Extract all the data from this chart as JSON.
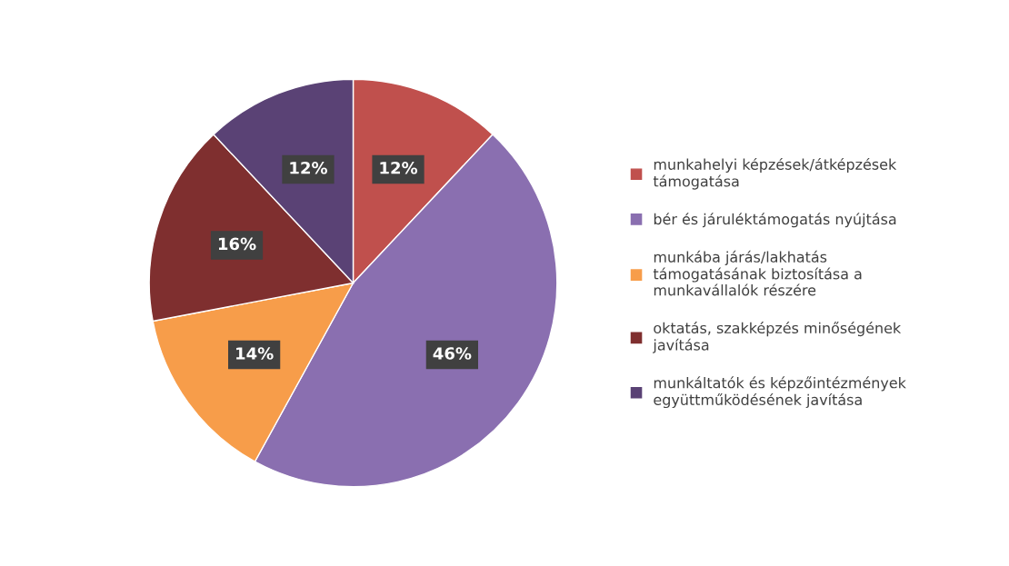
{
  "chart_data": {
    "type": "pie",
    "categories": [
      "munkahelyi képzések/átképzések\ntámogatása",
      "bér és járuléktámogatás nyújtása",
      "munkába járás/lakhatás\ntámogatásának biztosítása a\nmunkavállalók részére",
      "oktatás, szakképzés minőségének\njavítása",
      "munkáltatók és képzőintézmények\negyüttműködésének javítása"
    ],
    "values": [
      12,
      46,
      14,
      16,
      12
    ],
    "colors": [
      "#c0504d",
      "#8a6fb0",
      "#f79d4a",
      "#7f2f2f",
      "#5a4275"
    ],
    "value_labels": [
      "12%",
      "46%",
      "14%",
      "16%",
      "12%"
    ],
    "legend": "right"
  }
}
